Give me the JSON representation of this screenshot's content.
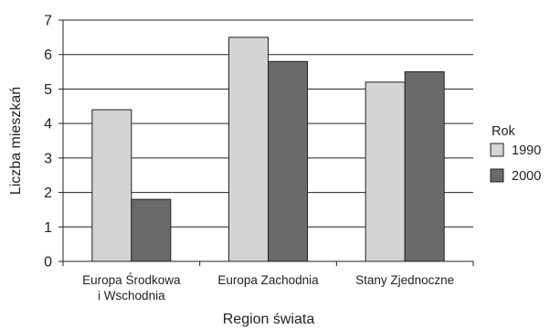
{
  "chart_data": {
    "type": "bar",
    "categories": [
      [
        "Europa Środkowa",
        "i Wschodnia"
      ],
      [
        "Europa Zachodnia"
      ],
      [
        "Stany Zjednoczne"
      ]
    ],
    "series": [
      {
        "name": "1990",
        "values": [
          4.4,
          6.5,
          5.2
        ],
        "color": "#d4d4d4"
      },
      {
        "name": "2000",
        "values": [
          1.8,
          5.8,
          5.5
        ],
        "color": "#6a6a6a"
      }
    ],
    "xlabel": "Region świata",
    "ylabel": "Liczba mieszkań",
    "ylim": [
      0,
      7
    ],
    "yticks": [
      0,
      1,
      2,
      3,
      4,
      5,
      6,
      7
    ],
    "legend_title": "Rok",
    "legend_position": "right",
    "grid": true,
    "colors": {
      "grid": "#222222",
      "axis": "#222222",
      "bar_stroke": "#222222"
    }
  }
}
